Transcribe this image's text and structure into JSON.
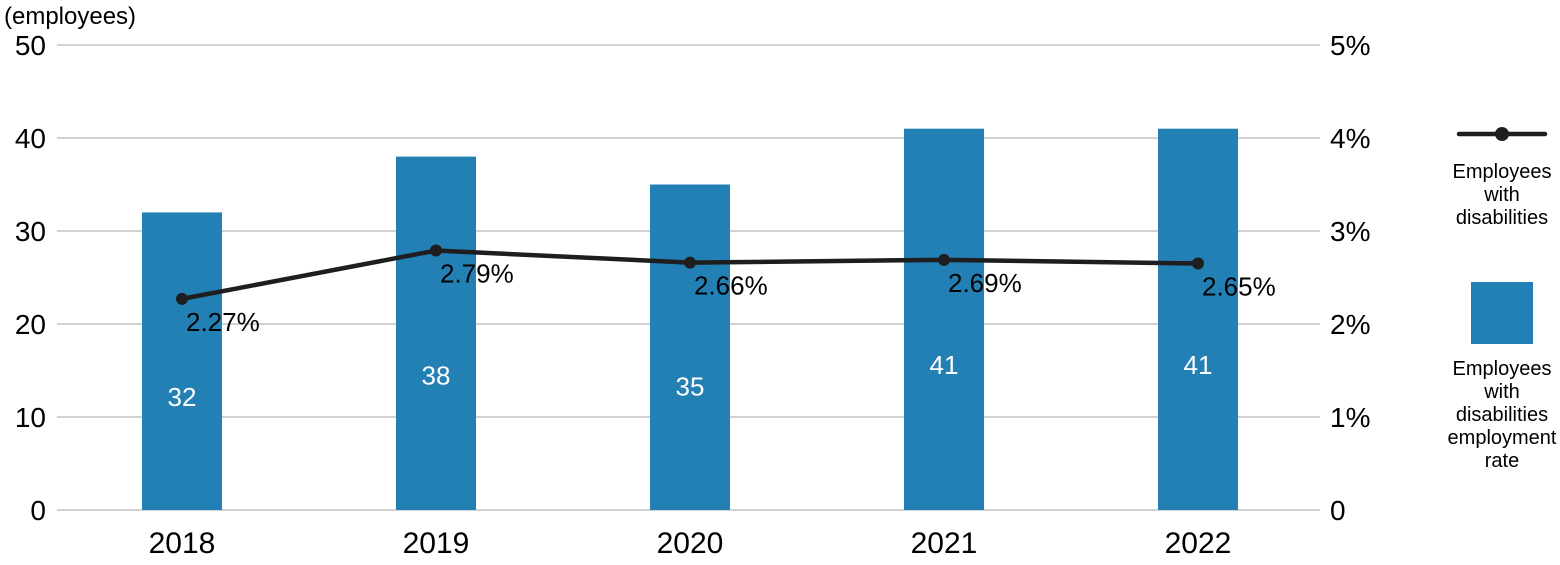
{
  "colors": {
    "bar": "#2380B4",
    "line": "#1E1E1E",
    "grid": "#D2D2D2",
    "bar_value_text": "#FFFFFF",
    "text": "#000000",
    "background": "#FFFFFF"
  },
  "chart_data": {
    "type": "bar",
    "subtype": "bar-line combo with dual y-axes",
    "categories": [
      "2018",
      "2019",
      "2020",
      "2021",
      "2022"
    ],
    "series": [
      {
        "name": "Employees with disabilities",
        "type": "bar",
        "axis": "left",
        "values": [
          32,
          38,
          35,
          41,
          41
        ],
        "data_labels": [
          "32",
          "38",
          "35",
          "41",
          "41"
        ]
      },
      {
        "name": "Employees with disabilities employment rate",
        "type": "line",
        "axis": "right",
        "values": [
          2.27,
          2.79,
          2.66,
          2.69,
          2.65
        ],
        "data_labels": [
          "2.27%",
          "2.79%",
          "2.66%",
          "2.69%",
          "2.65%"
        ]
      }
    ],
    "left_axis": {
      "title": "(employees)",
      "range": [
        0,
        50
      ],
      "ticks": [
        "0",
        "10",
        "20",
        "30",
        "40",
        "50"
      ]
    },
    "right_axis": {
      "range": [
        0,
        5
      ],
      "ticks": [
        "0",
        "1%",
        "2%",
        "3%",
        "4%",
        "5%"
      ]
    },
    "grid": true,
    "legend_position": "right"
  },
  "legend": [
    {
      "marker": "line-dot",
      "label": "Employees with disabilities",
      "lines": [
        "Employees",
        "with",
        "disabilities"
      ]
    },
    {
      "marker": "square",
      "label": "Employees with disabilities employment rate",
      "lines": [
        "Employees",
        "with",
        "disabilities",
        "employment",
        "rate"
      ]
    }
  ]
}
